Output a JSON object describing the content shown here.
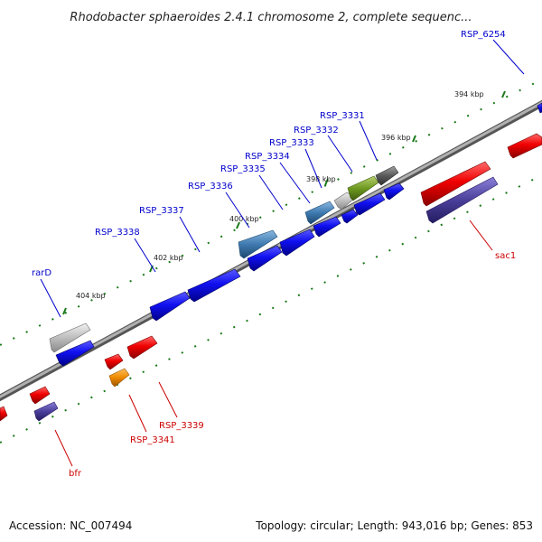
{
  "title": "Rhodobacter sphaeroides 2.4.1 chromosome 2, complete sequenc...",
  "accession_text": "Accession: NC_007494",
  "stats_text": "Topology: circular; Length: 943,016 bp; Genes: 853",
  "colors": {
    "forward_label": "#0000cc",
    "reverse_label": "#cc0000",
    "tick": "#1a7a1a",
    "backbone": "#808080"
  },
  "kbp_labels": [
    "394 kbp",
    "396 kbp",
    "398 kbp",
    "400 kbp",
    "402 kbp",
    "404 kbp"
  ],
  "forward_gene_labels": [
    "RSP_6254",
    "RSP_3331",
    "RSP_3332",
    "RSP_3333",
    "RSP_3334",
    "RSP_3335",
    "RSP_3336",
    "RSP_3337",
    "RSP_3338",
    "rarD"
  ],
  "reverse_gene_labels": [
    "sac1",
    "RSP_3339",
    "RSP_3341",
    "bfr"
  ]
}
